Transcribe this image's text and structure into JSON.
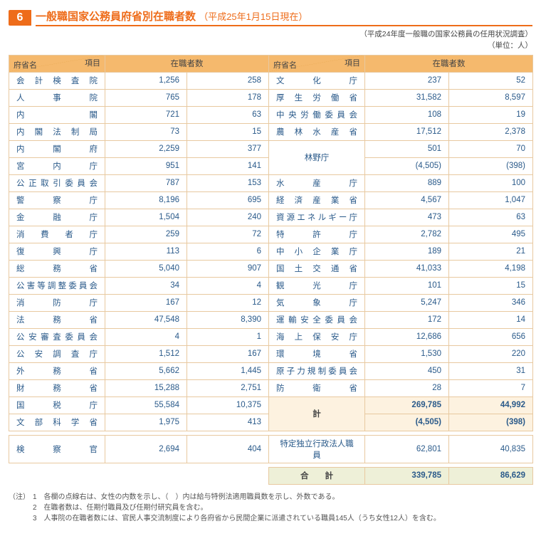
{
  "badge": "6",
  "title_main": "一般職国家公務員府省別在職者数",
  "title_sub": "（平成25年1月15日現在）",
  "note_top1": "（平成24年度一般職の国家公務員の任用状況調査）",
  "note_top2": "（単位：人）",
  "header": {
    "item": "項目",
    "ministry": "府省名",
    "count": "在職者数"
  },
  "left_rows": [
    {
      "name": "会計検査院",
      "a": "1,256",
      "b": "258"
    },
    {
      "name": "人事院",
      "a": "765",
      "b": "178"
    },
    {
      "name": "内閣",
      "a": "721",
      "b": "63"
    },
    {
      "name": "内閣法制局",
      "a": "73",
      "b": "15"
    },
    {
      "name": "内閣府",
      "a": "2,259",
      "b": "377"
    },
    {
      "name": "宮内庁",
      "a": "951",
      "b": "141"
    },
    {
      "name": "公正取引委員会",
      "a": "787",
      "b": "153"
    },
    {
      "name": "警察庁",
      "a": "8,196",
      "b": "695"
    },
    {
      "name": "金融庁",
      "a": "1,504",
      "b": "240"
    },
    {
      "name": "消費者庁",
      "a": "259",
      "b": "72"
    },
    {
      "name": "復興庁",
      "a": "113",
      "b": "6"
    },
    {
      "name": "総務省",
      "a": "5,040",
      "b": "907"
    },
    {
      "name": "公害等調整委員会",
      "a": "34",
      "b": "4"
    },
    {
      "name": "消防庁",
      "a": "167",
      "b": "12"
    },
    {
      "name": "法務省",
      "a": "47,548",
      "b": "8,390"
    },
    {
      "name": "公安審査委員会",
      "a": "4",
      "b": "1"
    },
    {
      "name": "公安調査庁",
      "a": "1,512",
      "b": "167"
    },
    {
      "name": "外務省",
      "a": "5,662",
      "b": "1,445"
    },
    {
      "name": "財務省",
      "a": "15,288",
      "b": "2,751"
    },
    {
      "name": "国税庁",
      "a": "55,584",
      "b": "10,375"
    },
    {
      "name": "文部科学省",
      "a": "1,975",
      "b": "413"
    }
  ],
  "right_rows_a": [
    {
      "name": "文化庁",
      "a": "237",
      "b": "52"
    },
    {
      "name": "厚生労働省",
      "a": "31,582",
      "b": "8,597"
    },
    {
      "name": "中央労働委員会",
      "a": "108",
      "b": "19"
    },
    {
      "name": "農林水産省",
      "a": "17,512",
      "b": "2,378"
    }
  ],
  "rinya": {
    "name": "林野庁",
    "a1": "501",
    "b1": "70",
    "a2": "(4,505)",
    "b2": "(398)"
  },
  "right_rows_b": [
    {
      "name": "水産庁",
      "a": "889",
      "b": "100"
    },
    {
      "name": "経済産業省",
      "a": "4,567",
      "b": "1,047"
    },
    {
      "name": "資源エネルギー庁",
      "a": "473",
      "b": "63"
    },
    {
      "name": "特許庁",
      "a": "2,782",
      "b": "495"
    },
    {
      "name": "中小企業庁",
      "a": "189",
      "b": "21"
    },
    {
      "name": "国土交通省",
      "a": "41,033",
      "b": "4,198"
    },
    {
      "name": "観光庁",
      "a": "101",
      "b": "15"
    },
    {
      "name": "気象庁",
      "a": "5,247",
      "b": "346"
    },
    {
      "name": "運輸安全委員会",
      "a": "172",
      "b": "14"
    },
    {
      "name": "海上保安庁",
      "a": "12,686",
      "b": "656"
    },
    {
      "name": "環境省",
      "a": "1,530",
      "b": "220"
    },
    {
      "name": "原子力規制委員会",
      "a": "450",
      "b": "31"
    },
    {
      "name": "防衛省",
      "a": "28",
      "b": "7"
    }
  ],
  "kei": {
    "name": "計",
    "a1": "269,785",
    "b1": "44,992",
    "a2": "(4,505)",
    "b2": "(398)"
  },
  "bottom_left": {
    "name": "検察官",
    "a": "2,694",
    "b": "404"
  },
  "bottom_right": {
    "name": "特定独立行政法人職員",
    "a": "62,801",
    "b": "40,835"
  },
  "grand": {
    "name": "合　　計",
    "a": "339,785",
    "b": "86,629"
  },
  "foot_label": "（注）",
  "footnotes": [
    "1　各欄の点線右は、女性の内数を示し、（　）内は給与特例法適用職員数を示し、外数である。",
    "2　在職者数は、任期付職員及び任期付研究員を含む。",
    "3　人事院の在職者数には、官民人事交流制度により各府省から民間企業に派遣されている職員145人（うち女性12人）を含む。"
  ],
  "style": {
    "accent": "#ee6c1a",
    "header_bg": "#f5b96d",
    "border": "#e8c9a0",
    "text_blue": "#2a5a8a",
    "totals_bg": "#fdf2e0",
    "grand_bg": "#eef0d8"
  }
}
